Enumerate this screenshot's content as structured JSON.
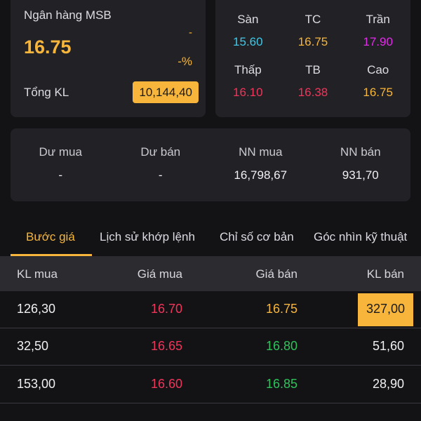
{
  "stock": {
    "name": "Ngân hàng MSB",
    "price": "16.75",
    "change": "-",
    "change_pct": "-%",
    "volume_label": "Tổng KL",
    "volume": "10,144,40"
  },
  "prices": [
    {
      "label": "Sàn",
      "value": "15.60",
      "color": "#3ec9e8"
    },
    {
      "label": "TC",
      "value": "16.75",
      "color": "#f7b63b"
    },
    {
      "label": "Trần",
      "value": "17.90",
      "color": "#e02ce8"
    },
    {
      "label": "Thấp",
      "value": "16.10",
      "color": "#f0355a"
    },
    {
      "label": "TB",
      "value": "16.38",
      "color": "#f0355a"
    },
    {
      "label": "Cao",
      "value": "16.75",
      "color": "#f7b63b"
    }
  ],
  "foreign": [
    {
      "label": "Dư mua",
      "value": "-"
    },
    {
      "label": "Dư bán",
      "value": "-"
    },
    {
      "label": "NN mua",
      "value": "16,798,67"
    },
    {
      "label": "NN bán",
      "value": "931,70"
    }
  ],
  "tabs": [
    "Bước giá",
    "Lịch sử khớp lệnh",
    "Chỉ số cơ bản",
    "Góc nhìn kỹ thuật"
  ],
  "orderbook": {
    "headers": [
      "KL mua",
      "Giá mua",
      "Giá bán",
      "KL bán"
    ],
    "rows": [
      {
        "buy_vol": "126,30",
        "buy_price": "16.70",
        "sell_price": "16.75",
        "sell_vol": "327,00"
      },
      {
        "buy_vol": "32,50",
        "buy_price": "16.65",
        "sell_price": "16.80",
        "sell_vol": "51,60"
      },
      {
        "buy_vol": "153,00",
        "buy_price": "16.60",
        "sell_price": "16.85",
        "sell_vol": "28,90"
      }
    ]
  },
  "colors": {
    "accent": "#f7b63b",
    "down": "#f0355a",
    "up": "#2fc25b"
  }
}
